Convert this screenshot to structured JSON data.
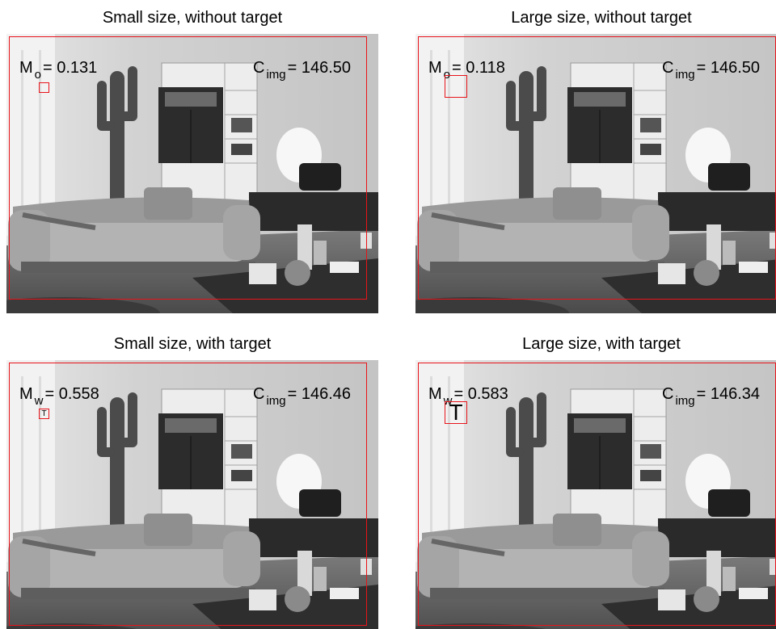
{
  "figure": {
    "panels": [
      {
        "title": "Small size, without target",
        "metric_symbol": "M",
        "metric_subscript": "o",
        "metric_value": "= 0.131",
        "clutter_symbol": "C",
        "clutter_subscript": "img",
        "clutter_value": "= 146.50",
        "target_letter": ""
      },
      {
        "title": "Large size, without target",
        "metric_symbol": "M",
        "metric_subscript": "o",
        "metric_value": "= 0.118",
        "clutter_symbol": "C",
        "clutter_subscript": "img",
        "clutter_value": "= 146.50",
        "target_letter": ""
      },
      {
        "title": "Small size, with target",
        "metric_symbol": "M",
        "metric_subscript": "w",
        "metric_value": "= 0.558",
        "clutter_symbol": "C",
        "clutter_subscript": "img",
        "clutter_value": "= 146.46",
        "target_letter": "T"
      },
      {
        "title": "Large size, with target",
        "metric_symbol": "M",
        "metric_subscript": "w",
        "metric_value": "= 0.583",
        "clutter_symbol": "C",
        "clutter_subscript": "img",
        "clutter_value": "= 146.34",
        "target_letter": "T"
      }
    ],
    "colors": {
      "roi_border": "#e8141b",
      "background": "#ffffff"
    },
    "image_content": "grayscale living room photograph (sofa, cactus sculpture, shelving, coffee table)"
  }
}
